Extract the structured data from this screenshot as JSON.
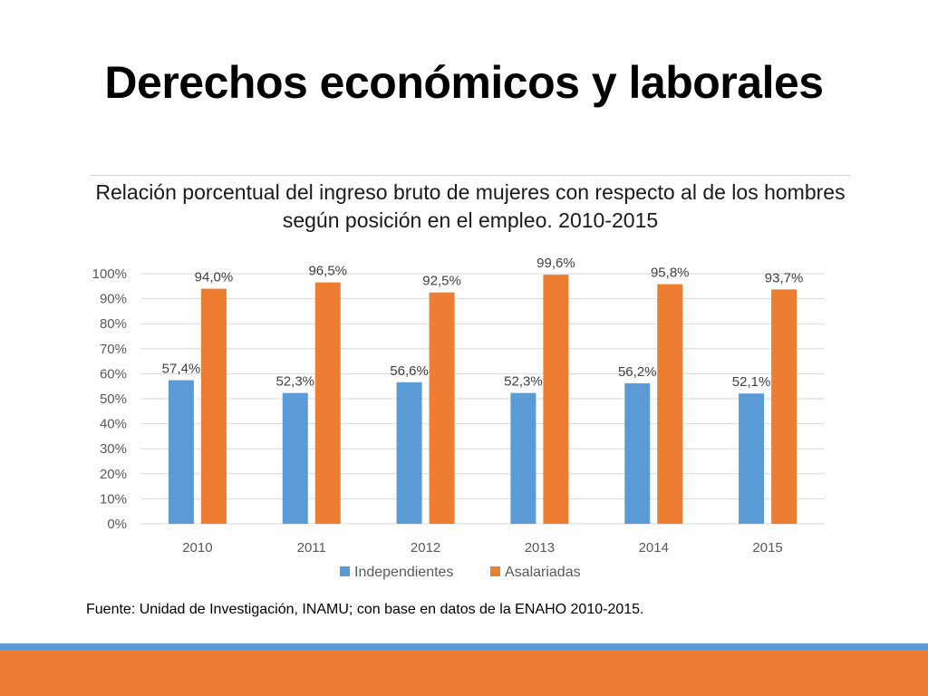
{
  "slide": {
    "title": "Derechos económicos y laborales",
    "source": "Fuente: Unidad de Investigación, INAMU; con base en datos de la ENAHO 2010-2015."
  },
  "colors": {
    "independientes": "#5b9bd5",
    "asalariadas": "#ed7d31",
    "gridline": "#d9d9d9"
  },
  "chart_data": {
    "type": "bar",
    "title": "Relación porcentual del ingreso bruto de mujeres con respecto al de los hombres según posición en el empleo. 2010-2015",
    "categories": [
      "2010",
      "2011",
      "2012",
      "2013",
      "2014",
      "2015"
    ],
    "series": [
      {
        "name": "Independientes",
        "values": [
          57.4,
          52.3,
          56.6,
          52.3,
          56.2,
          52.1
        ],
        "labels": [
          "57,4%",
          "52,3%",
          "56,6%",
          "52,3%",
          "56,2%",
          "52,1%"
        ]
      },
      {
        "name": "Asalariadas",
        "values": [
          94.0,
          96.5,
          92.5,
          99.6,
          95.8,
          93.7
        ],
        "labels": [
          "94,0%",
          "96,5%",
          "92,5%",
          "99,6%",
          "95,8%",
          "93,7%"
        ]
      }
    ],
    "ylim": [
      0,
      100
    ],
    "yticks": [
      "0%",
      "10%",
      "20%",
      "30%",
      "40%",
      "50%",
      "60%",
      "70%",
      "80%",
      "90%",
      "100%"
    ],
    "xlabel": "",
    "ylabel": "",
    "grid": true,
    "legend": "bottom"
  }
}
